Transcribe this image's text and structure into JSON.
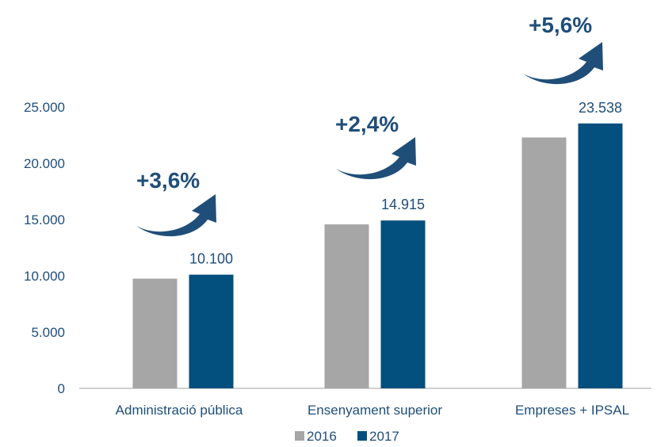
{
  "chart_data": {
    "type": "bar",
    "categories": [
      "Administració pública",
      "Ensenyament superior",
      "Empreses + IPSAL"
    ],
    "series": [
      {
        "name": "2016",
        "values": [
          9750,
          14570,
          22290
        ],
        "color": "#a6a6a6"
      },
      {
        "name": "2017",
        "values": [
          10100,
          14915,
          23538
        ],
        "color": "#034f7d",
        "labels": [
          "10.100",
          "14.915",
          "23.538"
        ]
      }
    ],
    "growth_labels": [
      "+3,6%",
      "+2,4%",
      "+5,6%"
    ],
    "y_ticks": [
      "0",
      "5.000",
      "10.000",
      "15.000",
      "20.000",
      "25.000"
    ],
    "y_tick_values": [
      0,
      5000,
      10000,
      15000,
      20000,
      25000
    ],
    "ylim": [
      0,
      25000
    ],
    "title": "",
    "xlabel": "",
    "ylabel": "",
    "grid": false,
    "legend": "bottom-center",
    "arrow_color": "#1f4e79"
  }
}
